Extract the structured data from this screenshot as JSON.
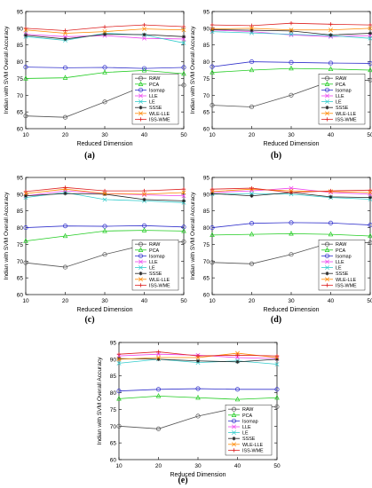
{
  "figure": {
    "captions": [
      "(a)",
      "(b)",
      "(c)",
      "(d)",
      "(e)"
    ]
  },
  "legend_entries": [
    {
      "name": "RAW",
      "color": "#555555",
      "marker": "circle"
    },
    {
      "name": "PCA",
      "color": "#22cc22",
      "marker": "triangle"
    },
    {
      "name": "Isomap",
      "color": "#3333cc",
      "marker": "circle"
    },
    {
      "name": "LLE",
      "color": "#ee44ee",
      "marker": "x"
    },
    {
      "name": "LE",
      "color": "#33cccc",
      "marker": "x"
    },
    {
      "name": "SSSE",
      "color": "#222222",
      "marker": "asterisk"
    },
    {
      "name": "WLE-LLE",
      "color": "#ff8800",
      "marker": "x"
    },
    {
      "name": "ISS-WME",
      "color": "#dd2222",
      "marker": "plus"
    }
  ],
  "chart_data": [
    {
      "type": "line",
      "caption": "(a)",
      "xlabel": "Reduced Dimension",
      "ylabel": "Indian with SVM Overall Accuracy",
      "x": [
        10,
        20,
        30,
        40,
        50
      ],
      "xlim": [
        10,
        50
      ],
      "ylim": [
        60,
        95
      ],
      "xticks": [
        "10",
        "20",
        "30",
        "40",
        "50"
      ],
      "yticks": [
        "60",
        "65",
        "70",
        "75",
        "80",
        "85",
        "90",
        "95"
      ],
      "grid": false,
      "legend_position": "bottom-right",
      "series": [
        {
          "name": "RAW",
          "values": [
            63.8,
            63.4,
            68.0,
            72.8,
            73.0
          ]
        },
        {
          "name": "PCA",
          "values": [
            75.0,
            75.2,
            76.8,
            77.4,
            76.4
          ]
        },
        {
          "name": "Isomap",
          "values": [
            78.4,
            78.2,
            78.3,
            78.0,
            78.3
          ]
        },
        {
          "name": "LLE",
          "values": [
            88.2,
            87.5,
            87.8,
            87.0,
            86.8
          ]
        },
        {
          "name": "LE",
          "values": [
            87.5,
            86.4,
            88.5,
            88.0,
            85.6
          ]
        },
        {
          "name": "SSSE",
          "values": [
            87.9,
            86.8,
            88.2,
            88.1,
            87.5
          ]
        },
        {
          "name": "WLE-LLE",
          "values": [
            89.5,
            88.5,
            89.0,
            89.8,
            89.5
          ]
        },
        {
          "name": "ISS-WME",
          "values": [
            90.0,
            89.3,
            90.4,
            91.0,
            90.5
          ]
        }
      ]
    },
    {
      "type": "line",
      "caption": "(b)",
      "xlabel": "Reduced Dimension",
      "ylabel": "Indian with SVM Overall Accuracy",
      "x": [
        10,
        20,
        30,
        40,
        50
      ],
      "xlim": [
        10,
        50
      ],
      "ylim": [
        60,
        95
      ],
      "xticks": [
        "10",
        "20",
        "30",
        "40",
        "50"
      ],
      "yticks": [
        "60",
        "65",
        "70",
        "75",
        "80",
        "85",
        "90",
        "95"
      ],
      "grid": false,
      "legend_position": "bottom-right",
      "series": [
        {
          "name": "RAW",
          "values": [
            67.0,
            66.5,
            70.0,
            74.2,
            74.5
          ]
        },
        {
          "name": "PCA",
          "values": [
            76.8,
            77.5,
            78.0,
            77.8,
            77.5
          ]
        },
        {
          "name": "Isomap",
          "values": [
            78.5,
            80.0,
            79.8,
            79.6,
            79.5
          ]
        },
        {
          "name": "LLE",
          "values": [
            89.5,
            89.0,
            88.0,
            87.5,
            87.8
          ]
        },
        {
          "name": "LE",
          "values": [
            89.0,
            88.6,
            88.2,
            87.8,
            87.0
          ]
        },
        {
          "name": "SSSE",
          "values": [
            89.6,
            89.4,
            89.2,
            88.0,
            88.5
          ]
        },
        {
          "name": "WLE-LLE",
          "values": [
            89.8,
            90.0,
            89.5,
            89.5,
            90.0
          ]
        },
        {
          "name": "ISS-WME",
          "values": [
            91.0,
            90.8,
            91.5,
            91.2,
            91.0
          ]
        }
      ]
    },
    {
      "type": "line",
      "caption": "(c)",
      "xlabel": "Reduced Dimension",
      "ylabel": "Indian with SVM Overall Accuracy",
      "x": [
        10,
        20,
        30,
        40,
        50
      ],
      "xlim": [
        10,
        50
      ],
      "ylim": [
        60,
        95
      ],
      "xticks": [
        "10",
        "20",
        "30",
        "40",
        "50"
      ],
      "yticks": [
        "60",
        "65",
        "70",
        "75",
        "80",
        "85",
        "90",
        "95"
      ],
      "grid": false,
      "legend_position": "bottom-right",
      "series": [
        {
          "name": "RAW",
          "values": [
            69.5,
            68.2,
            72.0,
            74.8,
            75.8
          ]
        },
        {
          "name": "PCA",
          "values": [
            76.0,
            77.5,
            79.0,
            79.2,
            79.0
          ]
        },
        {
          "name": "Isomap",
          "values": [
            80.0,
            80.5,
            80.4,
            80.6,
            80.2
          ]
        },
        {
          "name": "LLE",
          "values": [
            89.5,
            91.0,
            90.2,
            89.8,
            89.5
          ]
        },
        {
          "name": "LE",
          "values": [
            89.0,
            90.5,
            88.4,
            88.0,
            87.5
          ]
        },
        {
          "name": "SSSE",
          "values": [
            89.5,
            90.2,
            90.0,
            88.4,
            88.0
          ]
        },
        {
          "name": "WLE-LLE",
          "values": [
            90.2,
            91.5,
            90.2,
            90.0,
            90.5
          ]
        },
        {
          "name": "ISS-WME",
          "values": [
            90.8,
            92.0,
            91.0,
            91.0,
            91.5
          ]
        }
      ]
    },
    {
      "type": "line",
      "caption": "(d)",
      "xlabel": "Reduced Dimension",
      "ylabel": "Indian with SVM Overall Accuracy",
      "x": [
        10,
        20,
        30,
        40,
        50
      ],
      "xlim": [
        10,
        50
      ],
      "ylim": [
        60,
        95
      ],
      "xticks": [
        "10",
        "20",
        "30",
        "40",
        "50"
      ],
      "yticks": [
        "60",
        "65",
        "70",
        "75",
        "80",
        "85",
        "90",
        "95"
      ],
      "grid": false,
      "legend_position": "bottom-right",
      "series": [
        {
          "name": "RAW",
          "values": [
            69.6,
            69.2,
            72.0,
            75.5,
            75.5
          ]
        },
        {
          "name": "PCA",
          "values": [
            77.8,
            78.0,
            78.2,
            78.0,
            77.5
          ]
        },
        {
          "name": "Isomap",
          "values": [
            80.0,
            81.3,
            81.5,
            81.4,
            80.8
          ]
        },
        {
          "name": "LLE",
          "values": [
            90.5,
            91.0,
            91.8,
            90.5,
            90.0
          ]
        },
        {
          "name": "LE",
          "values": [
            90.0,
            90.2,
            90.0,
            89.0,
            88.5
          ]
        },
        {
          "name": "SSSE",
          "values": [
            90.2,
            89.5,
            90.5,
            89.2,
            89.0
          ]
        },
        {
          "name": "WLE-LLE",
          "values": [
            90.8,
            91.5,
            91.0,
            90.8,
            90.5
          ]
        },
        {
          "name": "ISS-WME",
          "values": [
            91.5,
            91.8,
            90.5,
            91.0,
            91.2
          ]
        }
      ]
    },
    {
      "type": "line",
      "caption": "(e)",
      "xlabel": "Reduced Dimension",
      "ylabel": "Indian with SVM Overall Accuracy",
      "x": [
        10,
        20,
        30,
        40,
        50
      ],
      "xlim": [
        10,
        50
      ],
      "ylim": [
        60,
        95
      ],
      "xticks": [
        "10",
        "20",
        "30",
        "40",
        "50"
      ],
      "yticks": [
        "60",
        "65",
        "70",
        "75",
        "80",
        "85",
        "90",
        "95"
      ],
      "grid": false,
      "legend_position": "bottom-right",
      "series": [
        {
          "name": "RAW",
          "values": [
            70.0,
            69.2,
            73.0,
            75.5,
            75.8
          ]
        },
        {
          "name": "PCA",
          "values": [
            78.2,
            79.0,
            78.5,
            78.0,
            78.5
          ]
        },
        {
          "name": "Isomap",
          "values": [
            80.5,
            81.0,
            81.2,
            81.0,
            81.0
          ]
        },
        {
          "name": "LLE",
          "values": [
            91.0,
            91.5,
            91.2,
            90.5,
            90.2
          ]
        },
        {
          "name": "LE",
          "values": [
            88.8,
            90.0,
            89.0,
            89.5,
            88.5
          ]
        },
        {
          "name": "SSSE",
          "values": [
            90.2,
            90.0,
            89.5,
            89.2,
            90.0
          ]
        },
        {
          "name": "WLE-LLE",
          "values": [
            90.0,
            90.5,
            90.5,
            91.8,
            90.5
          ]
        },
        {
          "name": "ISS-WME",
          "values": [
            91.5,
            92.2,
            91.0,
            91.2,
            91.0
          ]
        }
      ]
    }
  ]
}
